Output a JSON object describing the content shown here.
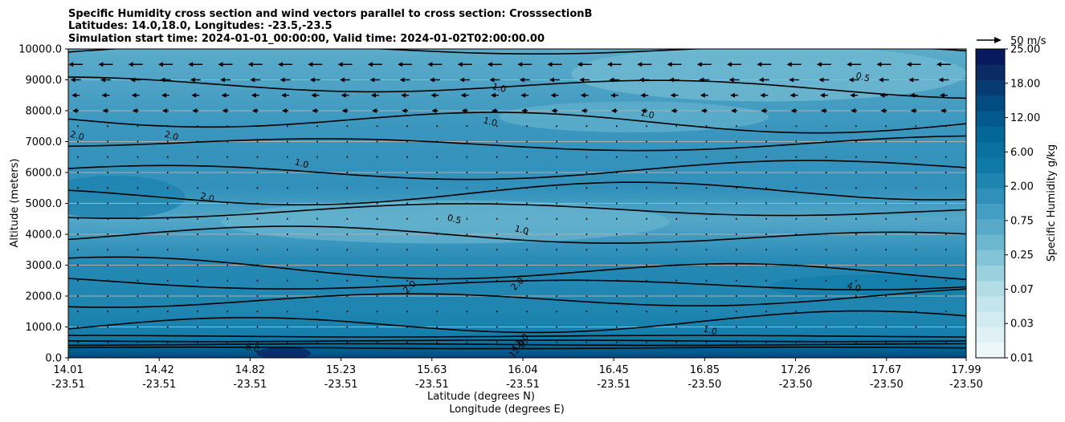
{
  "chart_data": {
    "type": "heatmap",
    "title_lines": [
      "Specific Humidity cross section and wind vectors parallel to cross section: CrosssectionB",
      "Latitudes: 14.0,18.0, Longitudes: -23.5,-23.5",
      "Simulation start time: 2024-01-01_00:00:00, Valid time: 2024-01-02T02:00:00.00"
    ],
    "ylabel": "Altitude (meters)",
    "xlabel_lines": [
      "Latitude (degrees N)",
      "Longitude (degrees E)"
    ],
    "ylim": [
      0,
      10000
    ],
    "yticks": [
      "0.0",
      "1000.0",
      "2000.0",
      "3000.0",
      "4000.0",
      "5000.0",
      "6000.0",
      "7000.0",
      "8000.0",
      "9000.0",
      "10000.0"
    ],
    "xticks": [
      {
        "lat": "14.01",
        "lon": "-23.51"
      },
      {
        "lat": "14.42",
        "lon": "-23.51"
      },
      {
        "lat": "14.82",
        "lon": "-23.51"
      },
      {
        "lat": "15.23",
        "lon": "-23.51"
      },
      {
        "lat": "15.63",
        "lon": "-23.51"
      },
      {
        "lat": "16.04",
        "lon": "-23.51"
      },
      {
        "lat": "16.45",
        "lon": "-23.51"
      },
      {
        "lat": "16.85",
        "lon": "-23.50"
      },
      {
        "lat": "17.26",
        "lon": "-23.50"
      },
      {
        "lat": "17.67",
        "lon": "-23.50"
      },
      {
        "lat": "17.99",
        "lon": "-23.50"
      }
    ],
    "grid": "horizontal",
    "colorbar": {
      "label": "Specific Humidity g/kg",
      "ticks": [
        "0.01",
        "0.03",
        "0.07",
        "0.25",
        "0.75",
        "2.00",
        "6.00",
        "12.00",
        "18.00",
        "25.00"
      ],
      "levels": 20,
      "color_low": "#f4fafb",
      "color_high": "#08105a"
    },
    "quiver_key": {
      "label": "50 m/s"
    },
    "contour_labels": [
      {
        "text": "1.0",
        "x": 0.48,
        "y": 8750
      },
      {
        "text": "1.0",
        "x": 0.47,
        "y": 7650
      },
      {
        "text": "1.0",
        "x": 0.645,
        "y": 7900
      },
      {
        "text": "2.0",
        "x": 0.01,
        "y": 7200
      },
      {
        "text": "2.0",
        "x": 0.115,
        "y": 7200
      },
      {
        "text": "1.0",
        "x": 0.26,
        "y": 6300
      },
      {
        "text": "2.0",
        "x": 0.155,
        "y": 5200
      },
      {
        "text": "0.5",
        "x": 0.43,
        "y": 4500
      },
      {
        "text": "1.0",
        "x": 0.505,
        "y": 4150
      },
      {
        "text": "2.0",
        "x": 0.38,
        "y": 2300
      },
      {
        "text": "2.0",
        "x": 0.5,
        "y": 2400
      },
      {
        "text": "4.0",
        "x": 0.875,
        "y": 2300
      },
      {
        "text": "1.0",
        "x": 0.715,
        "y": 900
      },
      {
        "text": "0.5",
        "x": 0.885,
        "y": 9100
      },
      {
        "text": "2.0",
        "x": 0.505,
        "y": 580
      },
      {
        "text": "4.0",
        "x": 0.5,
        "y": 400
      },
      {
        "text": "12.0",
        "x": 0.5,
        "y": 280
      },
      {
        "text": "8.0",
        "x": 0.205,
        "y": 330
      }
    ],
    "humidity_band_anchors_km": [
      {
        "alt_km": 0.0,
        "value": 16.0
      },
      {
        "alt_km": 0.3,
        "value": 10.0
      },
      {
        "alt_km": 0.7,
        "value": 3.2
      },
      {
        "alt_km": 1.5,
        "value": 2.4
      },
      {
        "alt_km": 3.0,
        "value": 2.1
      },
      {
        "alt_km": 4.5,
        "value": 0.7
      },
      {
        "alt_km": 5.5,
        "value": 1.5
      },
      {
        "alt_km": 6.5,
        "value": 1.4
      },
      {
        "alt_km": 7.5,
        "value": 1.2
      },
      {
        "alt_km": 8.5,
        "value": 0.9
      },
      {
        "alt_km": 10.0,
        "value": 0.6
      }
    ]
  }
}
